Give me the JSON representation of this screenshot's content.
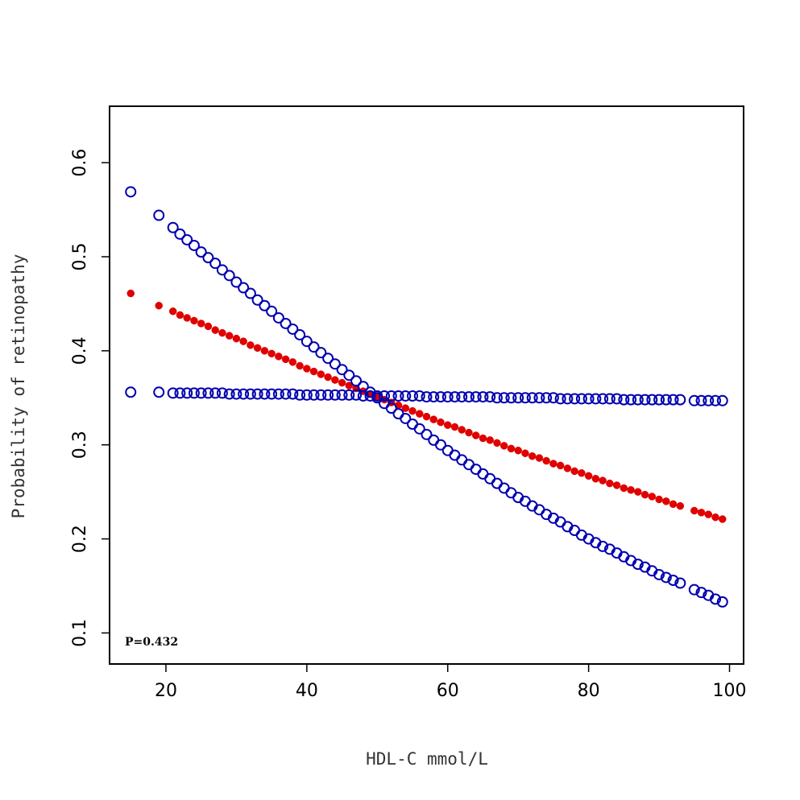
{
  "chart_data": {
    "type": "scatter",
    "title": "",
    "xlabel": "HDL-C mmol/L",
    "ylabel": "Probability of retinopathy",
    "xlim": [
      12,
      102
    ],
    "ylim": [
      0.067,
      0.66
    ],
    "xticks": [
      20,
      40,
      60,
      80,
      100
    ],
    "yticks": [
      0.1,
      0.2,
      0.3,
      0.4,
      0.5,
      0.6
    ],
    "xtick_labels": [
      "20",
      "40",
      "60",
      "80",
      "100"
    ],
    "ytick_labels": [
      "0.1",
      "0.2",
      "0.3",
      "0.4",
      "0.5",
      "0.6"
    ],
    "grid": false,
    "annotation": "P=0.432",
    "x": [
      15,
      19,
      21,
      22,
      23,
      24,
      25,
      26,
      27,
      28,
      29,
      30,
      31,
      32,
      33,
      34,
      35,
      36,
      37,
      38,
      39,
      40,
      41,
      42,
      43,
      44,
      45,
      46,
      47,
      48,
      49,
      50,
      51,
      52,
      53,
      54,
      55,
      56,
      57,
      58,
      59,
      60,
      61,
      62,
      63,
      64,
      65,
      66,
      67,
      68,
      69,
      70,
      71,
      72,
      73,
      74,
      75,
      76,
      77,
      78,
      79,
      80,
      81,
      82,
      83,
      84,
      85,
      86,
      87,
      88,
      89,
      90,
      91,
      92,
      93,
      95,
      96,
      97,
      98,
      99
    ],
    "series": [
      {
        "color": "#e00000",
        "marker": "filled-circle",
        "values": [
          0.461,
          0.448,
          0.442,
          0.438,
          0.435,
          0.432,
          0.429,
          0.426,
          0.422,
          0.419,
          0.416,
          0.413,
          0.41,
          0.406,
          0.403,
          0.4,
          0.397,
          0.394,
          0.391,
          0.388,
          0.384,
          0.381,
          0.378,
          0.375,
          0.372,
          0.369,
          0.366,
          0.363,
          0.36,
          0.357,
          0.354,
          0.351,
          0.348,
          0.345,
          0.342,
          0.339,
          0.336,
          0.333,
          0.33,
          0.327,
          0.324,
          0.321,
          0.319,
          0.316,
          0.313,
          0.31,
          0.307,
          0.305,
          0.302,
          0.299,
          0.296,
          0.294,
          0.291,
          0.288,
          0.286,
          0.283,
          0.28,
          0.278,
          0.275,
          0.272,
          0.27,
          0.267,
          0.264,
          0.262,
          0.259,
          0.257,
          0.254,
          0.252,
          0.25,
          0.247,
          0.245,
          0.242,
          0.24,
          0.237,
          0.235,
          0.23,
          0.228,
          0.226,
          0.223,
          0.221
        ]
      },
      {
        "color": "#0000b0",
        "marker": "open-circle",
        "values": [
          0.569,
          0.544,
          0.531,
          0.524,
          0.518,
          0.512,
          0.505,
          0.499,
          0.493,
          0.486,
          0.48,
          0.473,
          0.467,
          0.461,
          0.454,
          0.448,
          0.442,
          0.435,
          0.429,
          0.423,
          0.417,
          0.41,
          0.404,
          0.398,
          0.392,
          0.386,
          0.38,
          0.374,
          0.368,
          0.362,
          0.356,
          0.35,
          0.344,
          0.339,
          0.333,
          0.328,
          0.322,
          0.317,
          0.311,
          0.305,
          0.3,
          0.294,
          0.289,
          0.284,
          0.279,
          0.274,
          0.269,
          0.264,
          0.259,
          0.254,
          0.249,
          0.244,
          0.24,
          0.235,
          0.231,
          0.226,
          0.222,
          0.218,
          0.213,
          0.209,
          0.204,
          0.2,
          0.196,
          0.192,
          0.189,
          0.185,
          0.181,
          0.177,
          0.173,
          0.17,
          0.166,
          0.162,
          0.159,
          0.156,
          0.153,
          0.146,
          0.143,
          0.14,
          0.136,
          0.133
        ]
      },
      {
        "color": "#0000b0",
        "marker": "open-circle",
        "values": [
          0.356,
          0.356,
          0.355,
          0.355,
          0.355,
          0.355,
          0.355,
          0.355,
          0.355,
          0.355,
          0.354,
          0.354,
          0.354,
          0.354,
          0.354,
          0.354,
          0.354,
          0.354,
          0.354,
          0.354,
          0.353,
          0.353,
          0.353,
          0.353,
          0.353,
          0.353,
          0.353,
          0.353,
          0.353,
          0.352,
          0.352,
          0.352,
          0.352,
          0.352,
          0.352,
          0.352,
          0.352,
          0.352,
          0.351,
          0.351,
          0.351,
          0.351,
          0.351,
          0.351,
          0.351,
          0.351,
          0.351,
          0.351,
          0.35,
          0.35,
          0.35,
          0.35,
          0.35,
          0.35,
          0.35,
          0.35,
          0.35,
          0.349,
          0.349,
          0.349,
          0.349,
          0.349,
          0.349,
          0.349,
          0.349,
          0.349,
          0.348,
          0.348,
          0.348,
          0.348,
          0.348,
          0.348,
          0.348,
          0.348,
          0.348,
          0.347,
          0.347,
          0.347,
          0.347,
          0.347
        ]
      }
    ]
  }
}
